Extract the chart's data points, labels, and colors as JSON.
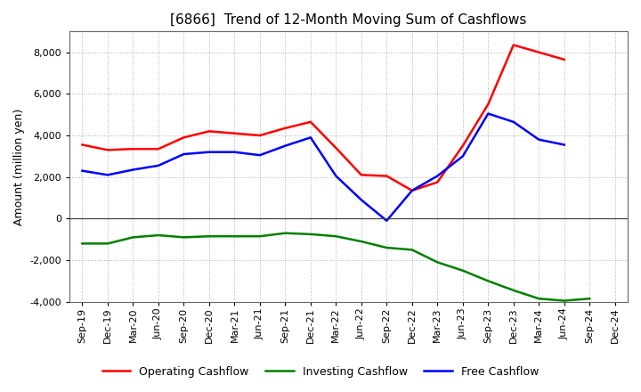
{
  "title": "[6866]  Trend of 12-Month Moving Sum of Cashflows",
  "ylabel": "Amount (million yen)",
  "xlabels": [
    "Sep-19",
    "Dec-19",
    "Mar-20",
    "Jun-20",
    "Sep-20",
    "Dec-20",
    "Mar-21",
    "Jun-21",
    "Sep-21",
    "Dec-21",
    "Mar-22",
    "Jun-22",
    "Sep-22",
    "Dec-22",
    "Mar-23",
    "Jun-23",
    "Sep-23",
    "Dec-23",
    "Mar-24",
    "Jun-24",
    "Sep-24",
    "Dec-24"
  ],
  "operating": [
    3550,
    3300,
    3350,
    3350,
    3900,
    4200,
    4100,
    4000,
    4350,
    4650,
    3400,
    2100,
    2050,
    1350,
    1750,
    3500,
    5500,
    8350,
    8000,
    7650,
    null,
    null
  ],
  "investing": [
    -1200,
    -1200,
    -900,
    -800,
    -900,
    -850,
    -850,
    -850,
    -700,
    -750,
    -850,
    -1100,
    -1400,
    -1500,
    -2100,
    -2500,
    -3000,
    -3450,
    -3850,
    -3950,
    -3850,
    null
  ],
  "free": [
    2300,
    2100,
    2350,
    2550,
    3100,
    3200,
    3200,
    3050,
    3500,
    3900,
    2050,
    900,
    -100,
    1350,
    2050,
    3000,
    5050,
    4650,
    3800,
    3550,
    null,
    null
  ],
  "operating_color": "#ff0000",
  "investing_color": "#008000",
  "free_color": "#0000ff",
  "ylim": [
    -4000,
    9000
  ],
  "yticks": [
    -4000,
    -2000,
    0,
    2000,
    4000,
    6000,
    8000
  ],
  "background_color": "#ffffff",
  "grid_color": "#b0b0b0",
  "title_fontsize": 11,
  "ylabel_fontsize": 9,
  "tick_fontsize": 8,
  "legend_fontsize": 9,
  "legend_labels": [
    "Operating Cashflow",
    "Investing Cashflow",
    "Free Cashflow"
  ]
}
